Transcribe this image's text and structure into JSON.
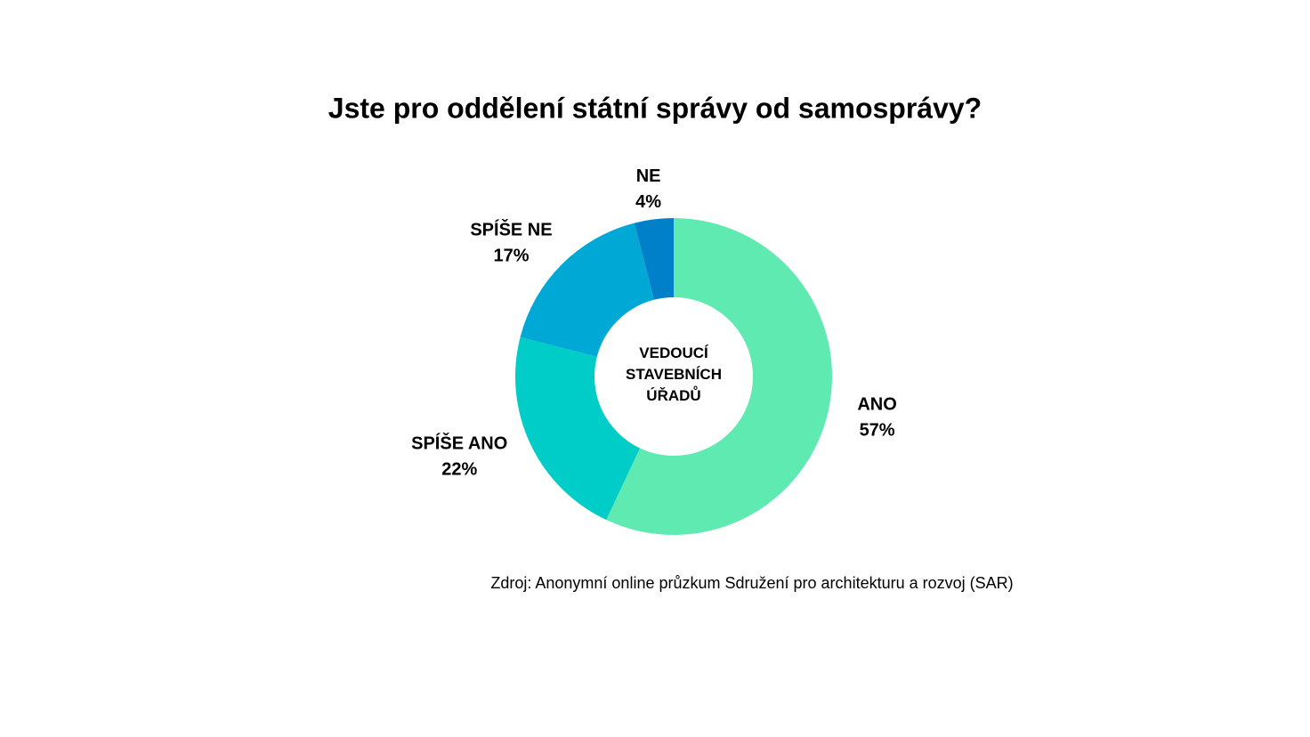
{
  "chart_data": {
    "type": "donut",
    "title": "Jste pro oddělení státní správy od samosprávy?",
    "center_label": "VEDOUCÍ STAVEBNÍCH ÚŘADŮ",
    "categories": [
      "ANO",
      "SPÍŠE ANO",
      "SPÍŠE NE",
      "NE"
    ],
    "values": [
      57,
      22,
      17,
      4
    ],
    "value_labels": [
      "57%",
      "22%",
      "17%",
      "4%"
    ],
    "colors": [
      "#5eeab0",
      "#00cdc8",
      "#00a8d6",
      "#0080c8"
    ],
    "source": "Zdroj: Anonymní online průzkum Sdružení pro architekturu a rozvoj (SAR)"
  }
}
